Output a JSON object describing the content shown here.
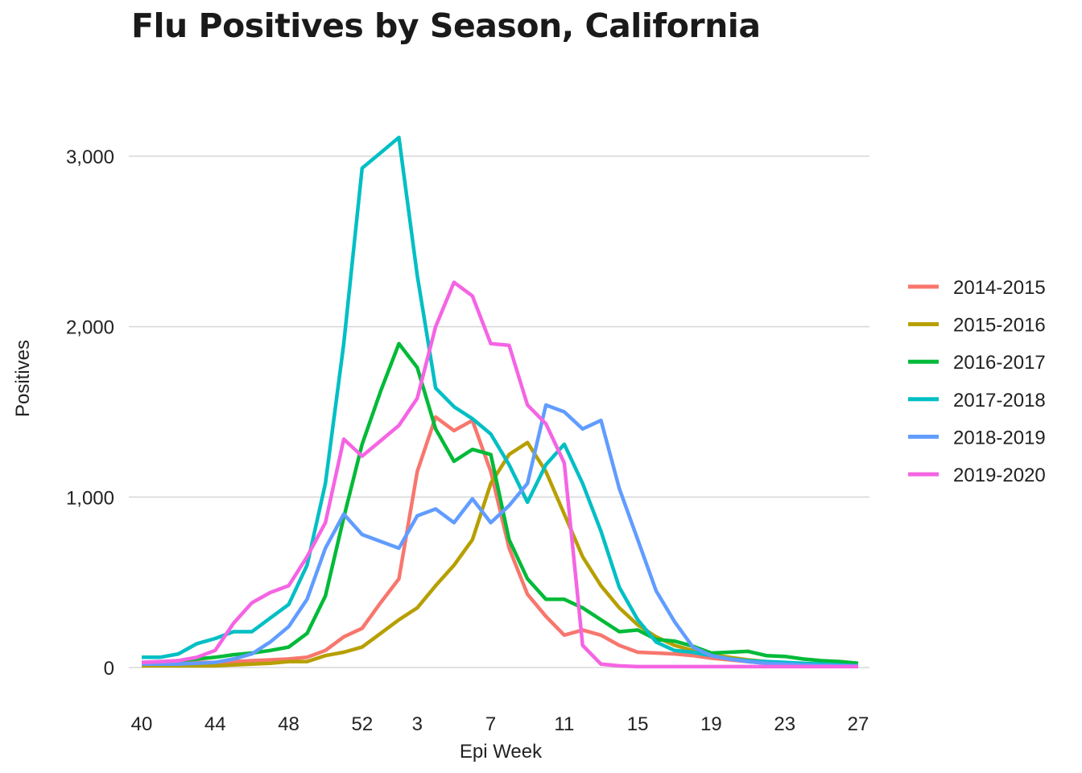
{
  "chart_data": {
    "type": "line",
    "title": "Flu Positives by Season, California",
    "xlabel": "Epi Week",
    "ylabel": "Positives",
    "x_tick_labels": [
      "40",
      "44",
      "48",
      "52",
      "3",
      "7",
      "11",
      "15",
      "19",
      "23",
      "27"
    ],
    "y_tick_labels": [
      "0",
      "1,000",
      "2,000",
      "3,000"
    ],
    "ylim": [
      0,
      3150
    ],
    "grid": "horizontal",
    "legend_position": "right",
    "x": [
      "40",
      "41",
      "42",
      "43",
      "44",
      "45",
      "46",
      "47",
      "48",
      "49",
      "50",
      "51",
      "52",
      "1",
      "2",
      "3",
      "4",
      "5",
      "6",
      "7",
      "8",
      "9",
      "10",
      "11",
      "12",
      "13",
      "14",
      "15",
      "16",
      "17",
      "18",
      "19",
      "20",
      "21",
      "22",
      "23",
      "24",
      "25",
      "26",
      "27"
    ],
    "series": [
      {
        "name": "2014-2015",
        "color": "#F8766D",
        "values": [
          20,
          20,
          25,
          30,
          30,
          35,
          40,
          45,
          50,
          60,
          100,
          180,
          230,
          380,
          520,
          1150,
          1470,
          1390,
          1450,
          1150,
          700,
          430,
          300,
          190,
          220,
          190,
          130,
          90,
          85,
          80,
          70,
          55,
          45,
          35,
          25,
          20,
          15,
          12,
          10,
          10
        ]
      },
      {
        "name": "2015-2016",
        "color": "#B79F00",
        "values": [
          10,
          10,
          10,
          10,
          10,
          15,
          20,
          25,
          35,
          35,
          70,
          90,
          120,
          200,
          280,
          350,
          480,
          600,
          750,
          1080,
          1250,
          1320,
          1150,
          900,
          650,
          480,
          350,
          250,
          180,
          130,
          100,
          75,
          60,
          45,
          35,
          25,
          20,
          15,
          10,
          10
        ]
      },
      {
        "name": "2016-2017",
        "color": "#00BA38",
        "values": [
          30,
          30,
          40,
          50,
          60,
          75,
          85,
          100,
          120,
          200,
          420,
          880,
          1310,
          1620,
          1900,
          1760,
          1400,
          1210,
          1280,
          1250,
          750,
          520,
          400,
          400,
          350,
          280,
          210,
          220,
          165,
          155,
          125,
          85,
          90,
          95,
          70,
          65,
          50,
          40,
          35,
          25
        ]
      },
      {
        "name": "2017-2018",
        "color": "#00BFC4",
        "values": [
          60,
          60,
          80,
          140,
          170,
          210,
          210,
          290,
          370,
          600,
          1080,
          1900,
          2930,
          3020,
          3110,
          2300,
          1640,
          1530,
          1460,
          1370,
          1190,
          970,
          1190,
          1310,
          1080,
          800,
          470,
          280,
          150,
          100,
          90,
          70,
          50,
          40,
          35,
          30,
          25,
          20,
          15,
          10
        ]
      },
      {
        "name": "2018-2019",
        "color": "#619CFF",
        "values": [
          20,
          20,
          20,
          25,
          30,
          50,
          80,
          150,
          240,
          400,
          700,
          900,
          780,
          740,
          700,
          890,
          930,
          850,
          990,
          850,
          950,
          1080,
          1540,
          1500,
          1400,
          1450,
          1050,
          750,
          450,
          270,
          120,
          70,
          50,
          35,
          25,
          20,
          15,
          12,
          10,
          10
        ]
      },
      {
        "name": "2019-2020",
        "color": "#F564E3",
        "values": [
          30,
          35,
          40,
          60,
          100,
          260,
          380,
          440,
          480,
          650,
          850,
          1340,
          1240,
          1330,
          1420,
          1580,
          2000,
          2260,
          2180,
          1900,
          1890,
          1540,
          1430,
          1200,
          130,
          20,
          10,
          5,
          5,
          5,
          5,
          5,
          5,
          5,
          5,
          5,
          5,
          5,
          5,
          5
        ]
      }
    ]
  }
}
